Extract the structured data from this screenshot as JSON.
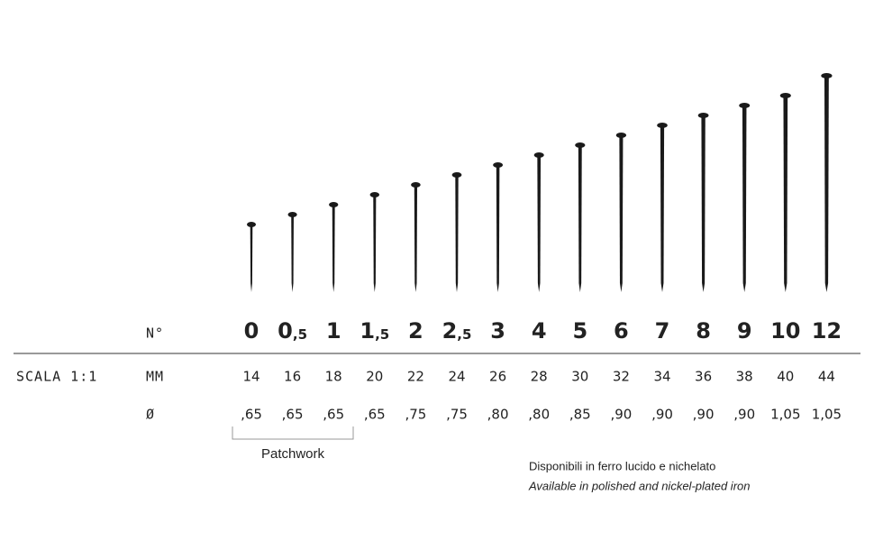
{
  "header_labels": {
    "number": "N°",
    "scale": "SCALA 1:1",
    "mm": "MM",
    "diameter": "Ø"
  },
  "pins": [
    {
      "size": "0",
      "mm": 14,
      "diameter": ",65"
    },
    {
      "size": "0,5",
      "mm": 16,
      "diameter": ",65"
    },
    {
      "size": "1",
      "mm": 18,
      "diameter": ",65"
    },
    {
      "size": "1,5",
      "mm": 20,
      "diameter": ",65"
    },
    {
      "size": "2",
      "mm": 22,
      "diameter": ",75"
    },
    {
      "size": "2,5",
      "mm": 24,
      "diameter": ",75"
    },
    {
      "size": "3",
      "mm": 26,
      "diameter": ",80"
    },
    {
      "size": "4",
      "mm": 28,
      "diameter": ",80"
    },
    {
      "size": "5",
      "mm": 30,
      "diameter": ",85"
    },
    {
      "size": "6",
      "mm": 32,
      "diameter": ",90"
    },
    {
      "size": "7",
      "mm": 34,
      "diameter": ",90"
    },
    {
      "size": "8",
      "mm": 36,
      "diameter": ",90"
    },
    {
      "size": "9",
      "mm": 38,
      "diameter": ",90"
    },
    {
      "size": "10",
      "mm": 40,
      "diameter": "1,05"
    },
    {
      "size": "12",
      "mm": 44,
      "diameter": "1,05"
    }
  ],
  "bracket_label": "Patchwork",
  "notes": [
    "Disponibili in ferro lucido e nichelato",
    "Available in polished and nickel-plated iron"
  ]
}
